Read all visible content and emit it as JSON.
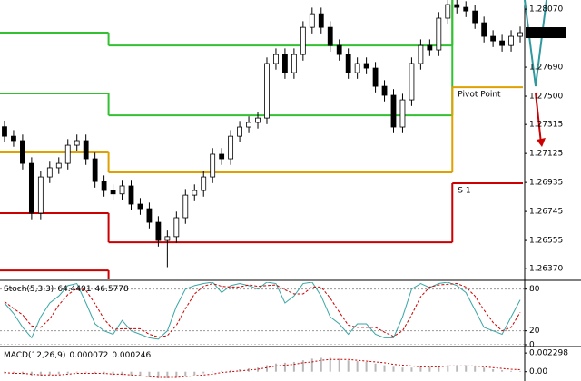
{
  "chart_data": [
    {
      "type": "candlestick",
      "open": [
        1.273,
        1.27238,
        1.27209,
        1.2706,
        1.26734,
        1.26971,
        1.27031,
        1.2706,
        1.27179,
        1.27209,
        1.2709,
        1.26941,
        1.26882,
        1.2686,
        1.26912,
        1.26793,
        1.26763,
        1.26674,
        1.26555,
        1.2658,
        1.26704,
        1.26852,
        1.26882,
        1.26971,
        1.2712,
        1.2709,
        1.27238,
        1.27298,
        1.27328,
        1.27357,
        1.27714,
        1.27773,
        1.27654,
        1.27773,
        1.27951,
        1.2804,
        1.27951,
        1.27832,
        1.27773,
        1.27654,
        1.27714,
        1.27684,
        1.27565,
        1.27506,
        1.27298,
        1.27476,
        1.27714,
        1.27832,
        1.27803,
        1.28011,
        1.281,
        1.28082,
        1.28058,
        1.27981,
        1.27892,
        1.27862,
        1.27832,
        1.27892
      ],
      "high": [
        1.2734,
        1.27278,
        1.27249,
        1.271,
        1.27011,
        1.27071,
        1.271,
        1.27219,
        1.27249,
        1.27249,
        1.2713,
        1.26981,
        1.26922,
        1.26952,
        1.26952,
        1.26833,
        1.26803,
        1.26714,
        1.2662,
        1.26744,
        1.26892,
        1.26922,
        1.27011,
        1.2716,
        1.2716,
        1.27278,
        1.27338,
        1.27368,
        1.27397,
        1.27754,
        1.27813,
        1.27813,
        1.27813,
        1.27991,
        1.2808,
        1.2808,
        1.27991,
        1.27872,
        1.27813,
        1.27754,
        1.27754,
        1.27724,
        1.27605,
        1.27546,
        1.27516,
        1.27754,
        1.27872,
        1.27872,
        1.28051,
        1.2814,
        1.2814,
        1.28122,
        1.28098,
        1.28021,
        1.27932,
        1.27902,
        1.27932,
        1.27956
      ],
      "low": [
        1.27198,
        1.27169,
        1.2702,
        1.26694,
        1.26694,
        1.26931,
        1.26991,
        1.2702,
        1.27139,
        1.2705,
        1.26901,
        1.26842,
        1.2682,
        1.2682,
        1.26753,
        1.26723,
        1.26634,
        1.26515,
        1.2638,
        1.2654,
        1.26664,
        1.26812,
        1.26842,
        1.26931,
        1.2705,
        1.2705,
        1.27198,
        1.27258,
        1.27288,
        1.27317,
        1.27674,
        1.27614,
        1.27614,
        1.27733,
        1.27911,
        1.27911,
        1.27792,
        1.27733,
        1.27614,
        1.27614,
        1.27644,
        1.27525,
        1.27466,
        1.27258,
        1.27258,
        1.27436,
        1.27674,
        1.27763,
        1.27763,
        1.27971,
        1.28042,
        1.28018,
        1.27941,
        1.27852,
        1.27822,
        1.27792,
        1.27792,
        1.27852
      ],
      "close": [
        1.27238,
        1.27209,
        1.2706,
        1.26734,
        1.26971,
        1.27031,
        1.2706,
        1.27179,
        1.27209,
        1.2709,
        1.26941,
        1.26882,
        1.2686,
        1.26912,
        1.26793,
        1.26763,
        1.26674,
        1.26555,
        1.2658,
        1.26704,
        1.26852,
        1.26882,
        1.26971,
        1.2712,
        1.2709,
        1.27238,
        1.27298,
        1.27328,
        1.27357,
        1.27714,
        1.27773,
        1.27654,
        1.27773,
        1.27951,
        1.2804,
        1.27951,
        1.27832,
        1.27773,
        1.27654,
        1.27714,
        1.27684,
        1.27565,
        1.27506,
        1.27298,
        1.27476,
        1.27714,
        1.27832,
        1.27803,
        1.28011,
        1.281,
        1.28082,
        1.28058,
        1.27981,
        1.27892,
        1.27862,
        1.27832,
        1.27892,
        1.27916
      ],
      "ylim": [
        1.263,
        1.2813
      ],
      "yticks": [
        {
          "value": 1.2807,
          "label": "1.28070"
        },
        {
          "value": 1.2769,
          "label": "1.27690"
        },
        {
          "value": 1.275,
          "label": "1.27500"
        },
        1.27315,
        1.27125,
        1.26935,
        1.26745,
        1.26555,
        {
          "value": 1.2637,
          "label": "1.26370"
        }
      ],
      "period_start": [
        0,
        12,
        50
      ],
      "levels": [
        {
          "color": "#33c033",
          "values": [
            1.27916,
            1.27832,
            1.283
          ]
        },
        {
          "color": "#33c033",
          "values": [
            1.27518,
            1.27375,
            1.2822
          ]
        },
        {
          "name": "Pivot Point",
          "color": "#e0a000",
          "values": [
            1.27132,
            1.27001,
            1.27559
          ]
        },
        {
          "name": "S 1",
          "color": "#cc0000",
          "values": [
            1.26734,
            1.26543,
            1.2693
          ]
        },
        {
          "color": "#cc0000",
          "values": [
            1.26359,
            1.2615,
            1.2625
          ]
        }
      ]
    },
    {
      "type": "line",
      "title": "Stoch(5,3,3)",
      "ylim": [
        0,
        90
      ],
      "yticks": [
        0,
        20,
        80
      ],
      "series": [
        {
          "color": "#3aa6a6",
          "values": [
            60,
            45,
            25,
            10,
            40,
            60,
            70,
            85,
            88,
            60,
            30,
            20,
            15,
            35,
            20,
            15,
            10,
            8,
            20,
            55,
            80,
            85,
            88,
            90,
            75,
            85,
            88,
            85,
            80,
            90,
            88,
            60,
            70,
            88,
            90,
            70,
            40,
            30,
            15,
            30,
            30,
            15,
            10,
            10,
            40,
            80,
            88,
            82,
            88,
            90,
            85,
            75,
            50,
            25,
            20,
            15,
            40,
            64.4491
          ]
        },
        {
          "color": "#cc0000",
          "dashed": true,
          "values": [
            62,
            52,
            43,
            27,
            25,
            37,
            57,
            72,
            81,
            78,
            59,
            37,
            22,
            23,
            23,
            23,
            15,
            11,
            13,
            28,
            52,
            73,
            84,
            88,
            84,
            83,
            83,
            86,
            84,
            85,
            86,
            79,
            73,
            73,
            83,
            83,
            67,
            47,
            28,
            25,
            25,
            25,
            18,
            12,
            20,
            43,
            69,
            83,
            86,
            87,
            88,
            83,
            70,
            50,
            32,
            20,
            25,
            46.5778
          ]
        }
      ]
    },
    {
      "type": "bar",
      "title": "MACD(12,26,9)",
      "ylim": [
        -0.00115,
        0.00287
      ],
      "yticks": [
        {
          "value": 0,
          "label": "0.00"
        },
        0.002298
      ],
      "series": [
        {
          "color": "#b8b8b8",
          "values": [
            -0.0002,
            -0.0002,
            -0.0003,
            -0.0005,
            -0.0005,
            -0.0004,
            -0.0003,
            -0.0002,
            -0.0001,
            -0.0001,
            -0.0002,
            -0.0003,
            -0.0004,
            -0.0004,
            -0.0005,
            -0.0006,
            -0.0007,
            -0.0008,
            -0.0008,
            -0.0007,
            -0.0005,
            -0.0004,
            -0.0002,
            0,
            0.0001,
            0.0002,
            0.0003,
            0.0004,
            0.0005,
            0.0008,
            0.001,
            0.0011,
            0.0012,
            0.0014,
            0.0016,
            0.0017,
            0.0017,
            0.0016,
            0.0014,
            0.0013,
            0.0012,
            0.001,
            0.0008,
            0.0006,
            0.0005,
            0.0005,
            0.0006,
            0.0006,
            0.0007,
            0.0008,
            0.0008,
            0.0008,
            0.0007,
            0.0005,
            0.0003,
            0.0002,
            0.0001,
            7.2e-05
          ]
        },
        {
          "color": "#cc0000",
          "dashed": true,
          "values": [
            -0.0001,
            -0.0002,
            -0.0002,
            -0.0003,
            -0.0004,
            -0.0004,
            -0.0004,
            -0.0003,
            -0.0002,
            -0.0002,
            -0.0002,
            -0.0002,
            -0.0003,
            -0.0003,
            -0.0004,
            -0.0005,
            -0.0006,
            -0.0007,
            -0.0007,
            -0.0007,
            -0.0006,
            -0.0005,
            -0.0004,
            -0.0003,
            -0.0001,
            0,
            0.0001,
            0.0002,
            0.0003,
            0.0005,
            0.0007,
            0.0008,
            0.0009,
            0.0011,
            0.0012,
            0.0014,
            0.0015,
            0.0015,
            0.0015,
            0.0014,
            0.0013,
            0.0012,
            0.0011,
            0.0009,
            0.0008,
            0.0007,
            0.0006,
            0.0006,
            0.0006,
            0.0007,
            0.0007,
            0.0007,
            0.0007,
            0.0006,
            0.0005,
            0.0004,
            0.0003,
            0.000246
          ]
        }
      ]
    }
  ]
}
